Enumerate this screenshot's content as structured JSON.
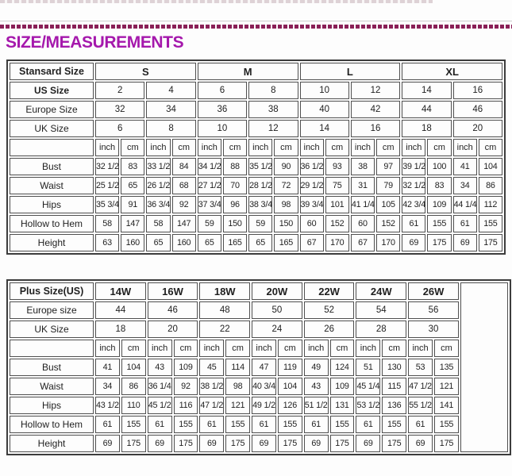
{
  "page": {
    "title": "SIZE/MEASUREMENTS"
  },
  "colors": {
    "heading": "#a518ac",
    "dash": "#8a2057",
    "table_border": "#3c3c3c"
  },
  "standard_table": {
    "label_col_width": 106,
    "size_header": {
      "label": "Stansard Size",
      "sizes": [
        "S",
        "M",
        "L",
        "XL"
      ],
      "span": 4
    },
    "conversion_rows": [
      {
        "label": "US Size",
        "bold": true,
        "values": [
          "2",
          "4",
          "6",
          "8",
          "10",
          "12",
          "14",
          "16"
        ]
      },
      {
        "label": "Europe Size",
        "bold": false,
        "values": [
          "32",
          "34",
          "36",
          "38",
          "40",
          "42",
          "44",
          "46"
        ]
      },
      {
        "label": "UK Size",
        "bold": false,
        "values": [
          "6",
          "8",
          "10",
          "12",
          "14",
          "16",
          "18",
          "20"
        ]
      }
    ],
    "units": [
      "inch",
      "cm"
    ],
    "unit_pairs": 8,
    "measurement_rows": [
      {
        "label": "Bust",
        "values": [
          "32 1/2",
          "83",
          "33 1/2",
          "84",
          "34 1/2",
          "88",
          "35 1/2",
          "90",
          "36 1/2",
          "93",
          "38",
          "97",
          "39 1/2",
          "100",
          "41",
          "104"
        ]
      },
      {
        "label": "Waist",
        "values": [
          "25 1/2",
          "65",
          "26 1/2",
          "68",
          "27 1/2",
          "70",
          "28 1/2",
          "72",
          "29 1/2",
          "75",
          "31",
          "79",
          "32 1/2",
          "83",
          "34",
          "86"
        ]
      },
      {
        "label": "Hips",
        "values": [
          "35 3/4",
          "91",
          "36 3/4",
          "92",
          "37 3/4",
          "96",
          "38 3/4",
          "98",
          "39 3/4",
          "101",
          "41 1/4",
          "105",
          "42 3/4",
          "109",
          "44 1/4",
          "112"
        ]
      },
      {
        "label": "Hollow to Hem",
        "values": [
          "58",
          "147",
          "58",
          "147",
          "59",
          "150",
          "59",
          "150",
          "60",
          "152",
          "60",
          "152",
          "61",
          "155",
          "61",
          "155"
        ]
      },
      {
        "label": "Height",
        "values": [
          "63",
          "160",
          "65",
          "160",
          "65",
          "165",
          "65",
          "165",
          "67",
          "170",
          "67",
          "170",
          "69",
          "175",
          "69",
          "175"
        ]
      }
    ]
  },
  "plus_table": {
    "label_col_width": 106,
    "trailing_empty_col": true,
    "trailing_col_width": 60,
    "size_header": {
      "label": "Plus Size(US)",
      "sizes": [
        "14W",
        "16W",
        "18W",
        "20W",
        "22W",
        "24W",
        "26W"
      ],
      "span": 2
    },
    "conversion_rows": [
      {
        "label": "Europe size",
        "bold": false,
        "values": [
          "44",
          "46",
          "48",
          "50",
          "52",
          "54",
          "56"
        ]
      },
      {
        "label": "UK Size",
        "bold": false,
        "values": [
          "18",
          "20",
          "22",
          "24",
          "26",
          "28",
          "30"
        ]
      }
    ],
    "units": [
      "inch",
      "cm"
    ],
    "unit_pairs": 7,
    "measurement_rows": [
      {
        "label": "Bust",
        "values": [
          "41",
          "104",
          "43",
          "109",
          "45",
          "114",
          "47",
          "119",
          "49",
          "124",
          "51",
          "130",
          "53",
          "135"
        ]
      },
      {
        "label": "Waist",
        "values": [
          "34",
          "86",
          "36 1/4",
          "92",
          "38 1/2",
          "98",
          "40 3/4",
          "104",
          "43",
          "109",
          "45 1/4",
          "115",
          "47 1/2",
          "121"
        ]
      },
      {
        "label": "Hips",
        "values": [
          "43 1/2",
          "110",
          "45 1/2",
          "116",
          "47 1/2",
          "121",
          "49 1/2",
          "126",
          "51 1/2",
          "131",
          "53 1/2",
          "136",
          "55 1/2",
          "141"
        ]
      },
      {
        "label": "Hollow to Hem",
        "values": [
          "61",
          "155",
          "61",
          "155",
          "61",
          "155",
          "61",
          "155",
          "61",
          "155",
          "61",
          "155",
          "61",
          "155"
        ]
      },
      {
        "label": "Height",
        "values": [
          "69",
          "175",
          "69",
          "175",
          "69",
          "175",
          "69",
          "175",
          "69",
          "175",
          "69",
          "175",
          "69",
          "175"
        ]
      }
    ]
  }
}
